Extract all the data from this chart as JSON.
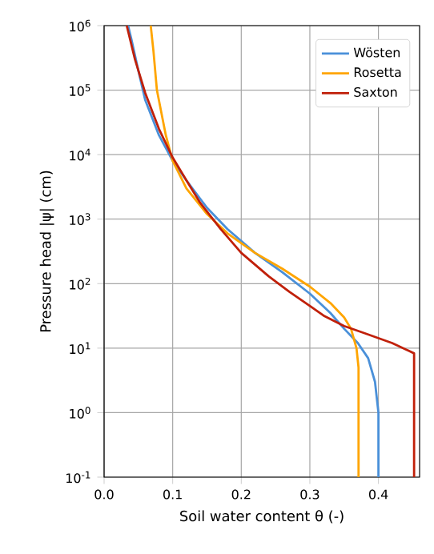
{
  "chart_data": {
    "type": "line",
    "xlabel": "Soil water content θ (-)",
    "ylabel": "Pressure head |ψ| (cm)",
    "log": "y",
    "grid": true,
    "legend": "top right",
    "marker": "none",
    "line_style": "solid",
    "xlim": [
      0,
      0.46
    ],
    "ylim": [
      0.1,
      1000000
    ],
    "xticks": [
      {
        "value": 0,
        "label": "0.0"
      },
      {
        "value": 0.1,
        "label": "0.1"
      },
      {
        "value": 0.2,
        "label": "0.2"
      },
      {
        "value": 0.3,
        "label": "0.3"
      },
      {
        "value": 0.4,
        "label": "0.4"
      }
    ],
    "yticks": [
      {
        "value": 0.1,
        "label": "10$^{-1}$"
      },
      {
        "value": 1,
        "label": "10$^{0}$"
      },
      {
        "value": 10,
        "label": "10$^{1}$"
      },
      {
        "value": 100,
        "label": "10$^{2}$"
      },
      {
        "value": 1000,
        "label": "10$^{3}$"
      },
      {
        "value": 10000,
        "label": "10$^{4}$"
      },
      {
        "value": 100000,
        "label": "10$^{5}$"
      },
      {
        "value": 1000000,
        "label": "10$^{6}$"
      }
    ],
    "series": [
      {
        "name": "Wösten",
        "color": "#4a90d9",
        "x": [
          0.4,
          0.4,
          0.395,
          0.385,
          0.37,
          0.35,
          0.33,
          0.3,
          0.26,
          0.22,
          0.18,
          0.15,
          0.12,
          0.1,
          0.08,
          0.06,
          0.05,
          0.04,
          0.035
        ],
        "values": [
          0.1,
          1,
          3,
          7,
          12,
          20,
          35,
          70,
          150,
          300,
          700,
          1500,
          4000,
          8000,
          20000,
          70000,
          200000,
          600000,
          1000000
        ]
      },
      {
        "name": "Rosetta",
        "color": "#ffa500",
        "x": [
          0.371,
          0.371,
          0.368,
          0.36,
          0.35,
          0.33,
          0.3,
          0.26,
          0.22,
          0.18,
          0.15,
          0.12,
          0.1,
          0.09,
          0.077,
          0.072,
          0.068
        ],
        "values": [
          0.1,
          5,
          10,
          20,
          30,
          50,
          90,
          170,
          300,
          600,
          1200,
          3000,
          8000,
          20000,
          100000,
          400000,
          1000000
        ]
      },
      {
        "name": "Saxton",
        "color": "#c0200a",
        "x": [
          0.452,
          0.452,
          0.42,
          0.38,
          0.35,
          0.32,
          0.3,
          0.27,
          0.24,
          0.2,
          0.17,
          0.14,
          0.12,
          0.1,
          0.08,
          0.06,
          0.045,
          0.033
        ],
        "values": [
          0.1,
          8.3,
          12,
          17,
          22,
          32,
          45,
          75,
          130,
          300,
          700,
          1800,
          4000,
          9000,
          25000,
          90000,
          300000,
          1000000
        ]
      }
    ]
  }
}
